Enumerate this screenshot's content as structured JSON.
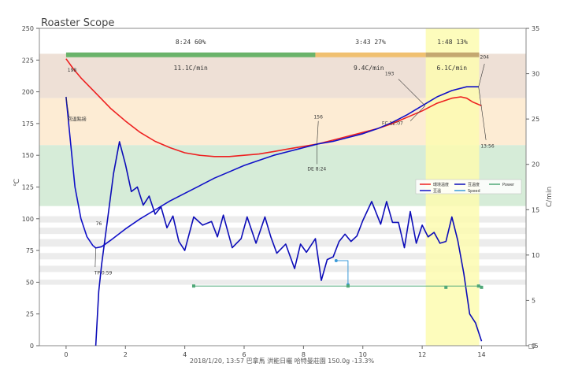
{
  "chart_data": {
    "type": "line",
    "title": "Roaster Scope",
    "xlabel": "",
    "ylabel_left": "℃",
    "ylabel_right": "C/min",
    "footer": "2018/1/20, 13:57  巴拿馬 洪能日曬 哈特曼莊園  150.0g  -13.3%",
    "xlim": [
      -0.9,
      15.5
    ],
    "ylim_left": [
      0,
      250
    ],
    "ylim_right": [
      0,
      35
    ],
    "x_ticks": [
      0,
      2,
      4,
      6,
      8,
      10,
      12,
      14
    ],
    "y_ticks_left": [
      0,
      25,
      50,
      75,
      100,
      125,
      150,
      175,
      200,
      225,
      250
    ],
    "y_ticks_right": [
      0,
      5,
      10,
      15,
      20,
      25,
      30,
      35
    ],
    "corner_mark": "□5",
    "grid": true,
    "legend_position": "right-middle",
    "phases": [
      {
        "label": "8:24  60%",
        "x0": 0,
        "x1": 8.4,
        "color": "#6ab36a"
      },
      {
        "label": "3:43  27%",
        "x0": 8.4,
        "x1": 12.12,
        "color": "#f0c070"
      },
      {
        "label": "1:48  13%",
        "x0": 12.12,
        "x1": 13.92,
        "color": "#c4a870"
      }
    ],
    "phase_rates": [
      {
        "label": "11.1C/min",
        "x": 4.2
      },
      {
        "label": "9.4C/min",
        "x": 10.2
      },
      {
        "label": "6.1C/min",
        "x": 13.0
      }
    ],
    "bands": [
      {
        "y0": 195,
        "y1": 230,
        "color": "#eee0d6"
      },
      {
        "y0": 158,
        "y1": 195,
        "color": "#fdecd4"
      },
      {
        "y0": 110,
        "y1": 158,
        "color": "#d6ecd8"
      }
    ],
    "stripes": [
      {
        "y0": 97,
        "y1": 102
      },
      {
        "y0": 88,
        "y1": 93
      },
      {
        "y0": 78,
        "y1": 84
      },
      {
        "y0": 68,
        "y1": 73
      },
      {
        "y0": 58,
        "y1": 63
      },
      {
        "y0": 48,
        "y1": 52
      }
    ],
    "highlight": {
      "x0": 12.12,
      "x1": 13.92,
      "color": "#fdfbb0"
    },
    "series": [
      {
        "name": "環境溫度",
        "color": "#ee2020",
        "axis": "left",
        "x": [
          0,
          0.25,
          0.5,
          1,
          1.5,
          2,
          2.5,
          3,
          3.5,
          4,
          4.5,
          5,
          5.5,
          6,
          6.5,
          7,
          7.5,
          8,
          8.5,
          9,
          9.5,
          10,
          10.5,
          11,
          11.5,
          12,
          12.5,
          13,
          13.3,
          13.5,
          13.7,
          14
        ],
        "y": [
          226,
          218,
          211,
          199,
          187,
          177,
          168,
          161,
          156,
          152,
          150,
          149,
          149,
          150,
          151,
          153,
          155,
          157,
          159,
          162,
          165,
          168,
          171,
          175,
          180,
          185,
          191,
          195,
          196,
          195,
          192,
          189
        ]
      },
      {
        "name": "豆溫",
        "color": "#1010c8",
        "axis": "left",
        "x": [
          0,
          0.15,
          0.3,
          0.5,
          0.7,
          0.9,
          1.0,
          1.2,
          1.5,
          2,
          2.5,
          3,
          3.5,
          4,
          4.5,
          5,
          5.5,
          6,
          6.5,
          7,
          7.5,
          8,
          8.5,
          9,
          9.5,
          10,
          10.5,
          11,
          11.5,
          12,
          12.5,
          13,
          13.5,
          13.9
        ],
        "y": [
          196,
          160,
          125,
          100,
          86,
          79,
          77,
          78,
          83,
          92,
          100,
          107,
          114,
          120,
          126,
          132,
          137,
          142,
          146,
          150,
          153,
          156,
          159,
          161,
          164,
          167,
          171,
          176,
          182,
          189,
          196,
          201,
          204,
          204
        ]
      },
      {
        "name": "豆溫度",
        "color": "#0c0cb8",
        "axis": "right",
        "x": [
          1.0,
          1.05,
          1.1,
          1.2,
          1.4,
          1.6,
          1.8,
          2.0,
          2.2,
          2.4,
          2.6,
          2.8,
          3.0,
          3.2,
          3.4,
          3.6,
          3.8,
          4.0,
          4.3,
          4.6,
          4.9,
          5.1,
          5.3,
          5.6,
          5.9,
          6.1,
          6.4,
          6.7,
          6.9,
          7.1,
          7.4,
          7.7,
          7.9,
          8.1,
          8.4,
          8.6,
          8.8,
          9.0,
          9.2,
          9.4,
          9.6,
          9.8,
          10.0,
          10.3,
          10.6,
          10.8,
          11.0,
          11.2,
          11.4,
          11.6,
          11.8,
          12.0,
          12.2,
          12.4,
          12.6,
          12.8,
          13.0,
          13.2,
          13.4,
          13.6,
          13.8,
          14.0
        ],
        "y": [
          0,
          3,
          6,
          9,
          14,
          19,
          22.5,
          20,
          17,
          17.5,
          15.5,
          16.5,
          14.5,
          15.3,
          13,
          14.3,
          11.5,
          10.5,
          14.2,
          13.3,
          13.7,
          12,
          14.4,
          10.8,
          11.8,
          14.2,
          11.3,
          14.2,
          12,
          10.2,
          11.2,
          8.5,
          11.2,
          10.3,
          11.8,
          7.2,
          9.5,
          9.8,
          11.5,
          12.3,
          11.5,
          12.1,
          13.8,
          15.9,
          13.4,
          15.9,
          13.6,
          13.6,
          10.8,
          14.8,
          11.3,
          13.3,
          12,
          12.5,
          11.3,
          11.5,
          14.2,
          11.6,
          8,
          3.5,
          2.5,
          0.5
        ]
      },
      {
        "name": "Speed",
        "color": "#3a9ad8",
        "axis": "left",
        "x": [
          9.1,
          9.5,
          9.5
        ],
        "y": [
          67,
          67,
          48
        ]
      },
      {
        "name": "Power",
        "color": "#4fa878",
        "axis": "left",
        "x": [
          4.3,
          14.0
        ],
        "y": [
          47,
          47
        ],
        "markers_x": [
          4.3,
          9.5,
          12.8,
          13.9,
          14.0
        ],
        "markers_y": [
          47,
          47,
          46,
          47,
          46
        ]
      }
    ],
    "annotations": [
      {
        "text": "198",
        "x": 0.05,
        "y": 216,
        "axis": "left",
        "anchor": "start"
      },
      {
        "text": "回温點接",
        "x": 0.05,
        "y": 177,
        "axis": "left",
        "anchor": "start"
      },
      {
        "text": "76",
        "x": 1.0,
        "y": 95,
        "axis": "left",
        "anchor": "start"
      },
      {
        "text": "TP 0:59",
        "x": 0.95,
        "y": 56,
        "axis": "left",
        "anchor": "start"
      },
      {
        "text": "156",
        "x": 8.5,
        "y": 179,
        "axis": "left",
        "anchor": "middle"
      },
      {
        "text": "DE 8:24",
        "x": 8.45,
        "y": 138,
        "axis": "left",
        "anchor": "middle"
      },
      {
        "text": "193",
        "x": 10.9,
        "y": 213,
        "axis": "left",
        "anchor": "middle"
      },
      {
        "text": "FC 12:07",
        "x": 11.0,
        "y": 174,
        "axis": "left",
        "anchor": "middle"
      },
      {
        "text": "204",
        "x": 14.1,
        "y": 226,
        "axis": "left",
        "anchor": "middle"
      },
      {
        "text": "13:56",
        "x": 14.2,
        "y": 156,
        "axis": "left",
        "anchor": "middle"
      }
    ]
  }
}
